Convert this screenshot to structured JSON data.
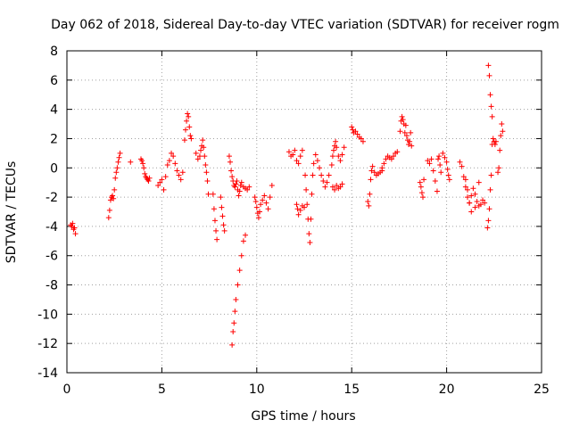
{
  "chart_data": {
    "type": "scatter",
    "title": "Day 062 of 2018, Sidereal Day-to-day VTEC variation (SDTVAR) for receiver rogm",
    "xlabel": "GPS time / hours",
    "ylabel": "SDTVAR / TECUs",
    "xlim": [
      0,
      25
    ],
    "ylim": [
      -14,
      8
    ],
    "xticks": [
      0,
      5,
      10,
      15,
      20,
      25
    ],
    "yticks": [
      -14,
      -12,
      -10,
      -8,
      -6,
      -4,
      -2,
      0,
      2,
      4,
      6,
      8
    ],
    "grid": true,
    "marker": "+",
    "series_color": "#ff0000",
    "series": [
      {
        "name": "SDTVAR",
        "x": [
          0.2,
          0.25,
          0.3,
          0.35,
          0.4,
          0.45,
          2.2,
          2.25,
          2.3,
          2.35,
          2.4,
          2.45,
          2.5,
          2.55,
          2.6,
          2.65,
          2.7,
          2.75,
          2.8,
          3.35,
          3.9,
          3.95,
          4.0,
          4.05,
          4.1,
          4.15,
          4.2,
          4.25,
          4.3,
          4.35,
          4.8,
          4.9,
          5.0,
          5.1,
          5.2,
          5.3,
          5.4,
          5.5,
          5.6,
          5.7,
          5.8,
          5.9,
          6.0,
          6.1,
          6.2,
          6.25,
          6.3,
          6.35,
          6.4,
          6.45,
          6.5,
          6.55,
          6.8,
          6.9,
          7.0,
          7.05,
          7.1,
          7.15,
          7.2,
          7.25,
          7.3,
          7.35,
          7.4,
          7.45,
          7.7,
          7.75,
          7.8,
          7.85,
          7.9,
          8.1,
          8.15,
          8.2,
          8.25,
          8.3,
          8.55,
          8.6,
          8.65,
          8.7,
          8.75,
          8.8,
          8.85,
          8.9,
          8.95,
          9.0,
          9.05,
          9.1,
          9.15,
          9.2,
          9.3,
          9.4,
          9.5,
          9.6,
          8.7,
          8.75,
          8.8,
          8.85,
          8.9,
          9.0,
          9.1,
          9.2,
          9.3,
          9.4,
          9.9,
          9.95,
          10.0,
          10.05,
          10.1,
          10.15,
          10.2,
          10.3,
          10.4,
          10.5,
          10.6,
          10.7,
          10.8,
          11.7,
          11.8,
          11.9,
          12.0,
          12.1,
          12.2,
          12.3,
          12.4,
          12.1,
          12.15,
          12.2,
          12.3,
          12.4,
          12.5,
          12.55,
          12.6,
          12.65,
          12.7,
          12.75,
          12.8,
          12.85,
          12.9,
          12.95,
          13.0,
          13.1,
          13.2,
          13.3,
          13.4,
          13.5,
          13.6,
          13.7,
          13.8,
          13.95,
          14.0,
          14.05,
          14.1,
          14.15,
          14.2,
          14.3,
          14.4,
          14.5,
          14.6,
          14.0,
          14.1,
          14.2,
          14.3,
          14.4,
          14.5,
          15.0,
          15.05,
          15.1,
          15.2,
          15.3,
          15.4,
          15.5,
          15.6,
          15.85,
          15.9,
          15.95,
          16.0,
          16.05,
          16.1,
          16.2,
          16.3,
          16.4,
          16.5,
          16.6,
          16.6,
          16.7,
          16.8,
          16.9,
          17.0,
          17.1,
          17.2,
          17.3,
          17.4,
          17.55,
          17.6,
          17.65,
          17.7,
          17.75,
          17.8,
          17.85,
          17.9,
          17.95,
          18.0,
          18.05,
          18.1,
          18.15,
          18.6,
          18.65,
          18.7,
          18.75,
          18.8,
          19.0,
          19.1,
          19.2,
          19.3,
          19.4,
          19.5,
          19.55,
          19.6,
          19.65,
          19.7,
          19.8,
          19.9,
          20.0,
          20.05,
          20.1,
          20.15,
          20.7,
          20.8,
          20.9,
          21.0,
          21.1,
          21.2,
          21.3,
          21.4,
          21.5,
          21.6,
          21.7,
          21.8,
          21.9,
          22.0,
          21.0,
          21.1,
          21.2,
          21.3,
          21.5,
          21.7,
          22.15,
          22.2,
          22.25,
          22.3,
          22.35,
          22.4,
          22.45,
          22.5,
          22.55,
          22.6,
          22.2,
          22.25,
          22.3,
          22.35,
          22.4,
          22.7,
          22.75,
          22.8,
          22.85,
          22.9,
          22.95
        ],
        "y": [
          -3.9,
          -4.0,
          -3.8,
          -4.2,
          -4.1,
          -4.5,
          -3.4,
          -2.9,
          -2.2,
          -2.0,
          -1.9,
          -2.1,
          -1.5,
          -0.7,
          -0.3,
          0.0,
          0.4,
          0.7,
          1.0,
          0.4,
          0.6,
          0.5,
          0.3,
          0.0,
          -0.4,
          -0.6,
          -0.7,
          -0.8,
          -0.9,
          -0.7,
          -1.2,
          -1.0,
          -0.8,
          -1.5,
          -0.6,
          0.2,
          0.5,
          1.0,
          0.8,
          0.3,
          -0.2,
          -0.5,
          -0.8,
          -0.3,
          1.9,
          2.6,
          3.2,
          3.7,
          3.5,
          2.8,
          2.2,
          2.0,
          1.0,
          0.6,
          0.8,
          1.2,
          1.5,
          1.9,
          1.4,
          0.8,
          0.2,
          -0.3,
          -0.9,
          -1.8,
          -1.8,
          -2.8,
          -3.6,
          -4.3,
          -4.9,
          -2.0,
          -2.7,
          -3.3,
          -3.9,
          -4.3,
          0.8,
          0.4,
          -0.2,
          -0.6,
          -0.9,
          -1.2,
          -1.3,
          -1.1,
          -0.9,
          -1.5,
          -1.9,
          -1.6,
          -1.2,
          -1.0,
          -1.3,
          -1.4,
          -1.5,
          -1.3,
          -12.1,
          -11.2,
          -10.6,
          -9.8,
          -9.0,
          -8.0,
          -7.0,
          -6.0,
          -5.0,
          -4.6,
          -2.0,
          -2.3,
          -2.7,
          -3.1,
          -3.4,
          -3.0,
          -2.5,
          -2.2,
          -1.9,
          -2.4,
          -2.8,
          -2.0,
          -1.2,
          1.1,
          0.8,
          0.9,
          1.2,
          0.5,
          0.3,
          0.8,
          1.2,
          -2.5,
          -2.8,
          -3.2,
          -2.9,
          -2.6,
          -2.7,
          -0.5,
          -1.5,
          -2.5,
          -3.5,
          -4.5,
          -5.1,
          -3.5,
          -1.8,
          -0.5,
          0.3,
          0.9,
          0.5,
          0.0,
          -0.5,
          -0.9,
          -1.3,
          -1.0,
          -0.5,
          0.2,
          0.8,
          1.2,
          1.5,
          1.8,
          1.4,
          0.8,
          0.5,
          0.9,
          1.4,
          -1.3,
          -1.5,
          -1.2,
          -1.4,
          -1.3,
          -1.1,
          2.8,
          2.6,
          2.4,
          2.5,
          2.3,
          2.1,
          2.0,
          1.8,
          -2.3,
          -2.6,
          -1.8,
          -0.8,
          -0.2,
          0.1,
          -0.3,
          -0.5,
          -0.4,
          -0.3,
          -0.2,
          0.0,
          0.3,
          0.6,
          0.8,
          0.7,
          0.6,
          0.8,
          1.0,
          1.1,
          2.5,
          3.2,
          3.5,
          3.3,
          3.0,
          2.4,
          2.9,
          2.2,
          1.9,
          1.6,
          1.8,
          2.4,
          1.5,
          -1.0,
          -1.3,
          -1.7,
          -2.0,
          -0.8,
          0.5,
          0.3,
          0.6,
          -0.2,
          -0.9,
          -1.6,
          0.6,
          0.8,
          0.2,
          -0.3,
          1.0,
          0.7,
          0.4,
          -0.1,
          -0.5,
          -0.8,
          0.4,
          0.1,
          -0.6,
          -1.3,
          -2.0,
          -2.4,
          -1.9,
          -1.4,
          -1.8,
          -2.3,
          -2.6,
          -2.5,
          -2.2,
          -2.4,
          -0.8,
          -1.5,
          -2.4,
          -3.0,
          -2.7,
          -1.0,
          -4.1,
          -3.6,
          -2.8,
          -1.5,
          -0.5,
          1.6,
          2.0,
          1.8,
          1.6,
          1.8,
          7.0,
          6.3,
          5.0,
          4.2,
          3.5,
          -0.3,
          0.0,
          1.2,
          2.2,
          3.0,
          2.5
        ]
      }
    ]
  }
}
